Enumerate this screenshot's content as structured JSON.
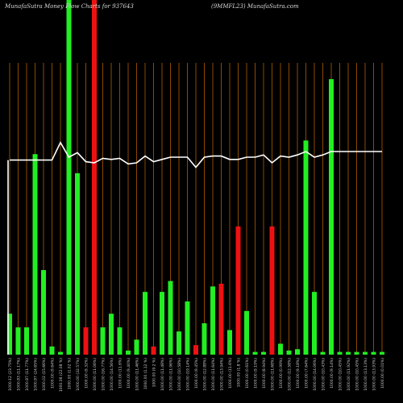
{
  "header": {
    "title_left": "MunafaSutra  Money Flow  Charts for 937643",
    "title_right": "(9MMFL23) MunafaSutra.com"
  },
  "colors": {
    "background": "#000000",
    "up": "#22ee22",
    "down": "#ee1111",
    "grid": "#8b4a00",
    "price_line": "#ffffff",
    "label": "#cfcfcf"
  },
  "chart_data": {
    "type": "bar",
    "title": "MunafaSutra  Money Flow  Charts for 937643",
    "grid": true,
    "categories": [
      "1000.12 (23.75%)",
      "1000.83 (11.17%)",
      "1000.87 (11.77%)",
      "1000.87 (24.65%)",
      "1000.02 (15.66%)",
      "1000.00 (9.64%)",
      "1000.06 (22.08 %)",
      "1000.00 (1.02 %)",
      "1000.00 (32.57%)",
      "1000.00 (9.32%)",
      "1000.00 (11.06%)",
      "1000.00 (16.77%)",
      "1000.00 (14.56%)",
      "1000.00 (11.6%)",
      "1000.00 (9.40%)",
      "1000.00 (11.46%)",
      "1000.00 (1.12 %)",
      "1000.00 (9.2 %)",
      "1000.00 (11.48%)",
      "1000.00 (11.96%)",
      "1000.00 (10.58%)",
      "1000.00 (19.14%)",
      "1000.00 (9.45%)",
      "1000.00 (12.88%)",
      "1000.00 (11.64%)",
      "1000.00 (13.94%)",
      "1000.00 (11.6%)",
      "1000.00 (1.8 %)",
      "1000.00 (0.61%)",
      "1000.00 (9.19%)",
      "1000.00 (8.94%)",
      "1000.00 (11.68%)",
      "1000.00 (0.99%)",
      "1000.00 (12.58%)",
      "1000.00 (9.18%)",
      "1000.00 (7.64%)",
      "1000.00 (14.06%)",
      "1000.00 (10.43%)",
      "1000.00 (9.14%)",
      "1000.00 (10.45%)",
      "1000.00 (11.92%)",
      "1000.00 (10.45%)",
      "1000.00 (13.13%)",
      "1000.00 (13.93%)",
      "1000.00 (0.01%)"
    ],
    "series": [
      {
        "name": "money_flow",
        "values": [
          30,
          20,
          20,
          147,
          62,
          6,
          2,
          260,
          133,
          20,
          268,
          20,
          30,
          20,
          3,
          11,
          46,
          6,
          46,
          54,
          17,
          39,
          7,
          23,
          50,
          52,
          18,
          94,
          32,
          2,
          2,
          94,
          8,
          3,
          4,
          157,
          46,
          2,
          202,
          2,
          2,
          2,
          2,
          2,
          2
        ],
        "directions": [
          "up",
          "up",
          "up",
          "up",
          "up",
          "up",
          "up",
          "up",
          "up",
          "down",
          "down",
          "up",
          "up",
          "up",
          "up",
          "up",
          "up",
          "down",
          "up",
          "up",
          "up",
          "up",
          "down",
          "up",
          "up",
          "down",
          "up",
          "down",
          "up",
          "up",
          "up",
          "down",
          "up",
          "up",
          "up",
          "up",
          "up",
          "up",
          "up",
          "up",
          "up",
          "up",
          "up",
          "up",
          "up"
        ]
      },
      {
        "name": "price",
        "values": [
          1000.12,
          1000.12,
          1000.12,
          1000.12,
          1000.12,
          1000.12,
          1000.9,
          1000.25,
          1000.45,
          1000.05,
          1000.0,
          1000.2,
          1000.15,
          1000.2,
          999.95,
          1000.0,
          1000.3,
          1000.05,
          1000.15,
          1000.25,
          1000.25,
          1000.25,
          999.8,
          1000.25,
          1000.3,
          1000.3,
          1000.15,
          1000.15,
          1000.25,
          1000.25,
          1000.35,
          1000.0,
          1000.3,
          1000.25,
          1000.35,
          1000.5,
          1000.25,
          1000.35,
          1000.5,
          1000.5,
          1000.5,
          1000.5,
          1000.5,
          1000.5,
          1000.5
        ]
      }
    ],
    "ylim": [
      0,
      260
    ]
  }
}
